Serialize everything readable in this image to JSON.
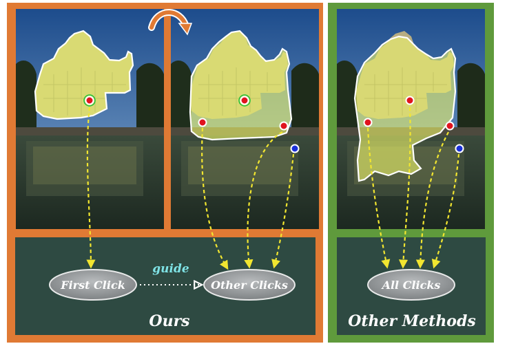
{
  "labels": {
    "first_click": "First Click",
    "guide": "guide",
    "other_clicks": "Other Clicks",
    "all_clicks": "All Clicks",
    "ours": "Ours",
    "other_methods": "Other Methods"
  },
  "colors": {
    "ours_frame": "#e07a34",
    "other_frame": "#5f9a3c",
    "bottom_panel": "#2e4a42",
    "mask": "#eef56a",
    "positive_click": "#e0141e",
    "negative_click": "#1a30d8",
    "arrow": "#f2e630",
    "guide_text": "#7fe3e6"
  }
}
